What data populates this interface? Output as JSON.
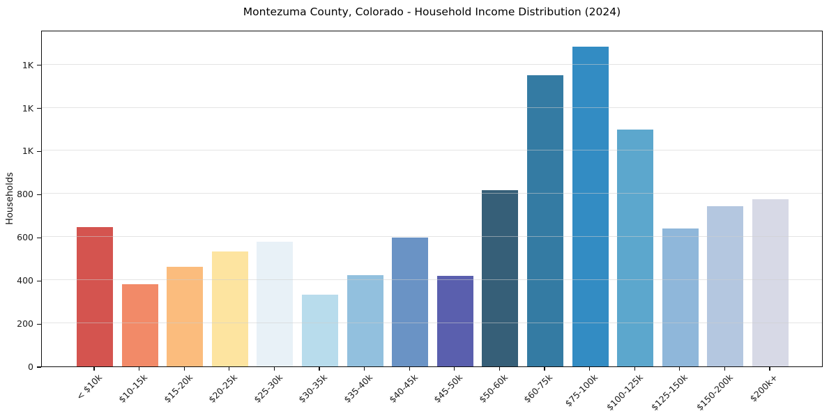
{
  "chart_data": {
    "type": "bar",
    "title": "Montezuma County, Colorado - Household Income Distribution (2024)",
    "xlabel": "",
    "ylabel": "Households",
    "categories": [
      "< $10k",
      "$10-15k",
      "$15-20k",
      "$20-25k",
      "$25-30k",
      "$30-35k",
      "$35-40k",
      "$40-45k",
      "$45-50k",
      "$50-60k",
      "$60-75k",
      "$75-100k",
      "$100-125k",
      "$125-150k",
      "$150-200k",
      "$200k+"
    ],
    "values": [
      645,
      380,
      463,
      533,
      577,
      334,
      424,
      598,
      419,
      816,
      1349,
      1482,
      1097,
      640,
      743,
      775
    ],
    "bar_colors": [
      "#d4544f",
      "#f28a68",
      "#fbbc7d",
      "#fde4a0",
      "#e8f1f7",
      "#b8dcec",
      "#92c0de",
      "#6a93c5",
      "#5a5fae",
      "#365f78",
      "#347ba3",
      "#338cc3",
      "#5ca7cd",
      "#8fb7da",
      "#b4c7e0",
      "#d7d9e6"
    ],
    "ylim": [
      0,
      1560
    ],
    "yticks": [
      0,
      200,
      400,
      600,
      800,
      1000,
      1200,
      1400
    ],
    "ytick_labels": [
      "0",
      "200",
      "400",
      "600",
      "800",
      "1K",
      "1K",
      "1K"
    ],
    "grid": "horizontal",
    "legend": null
  }
}
